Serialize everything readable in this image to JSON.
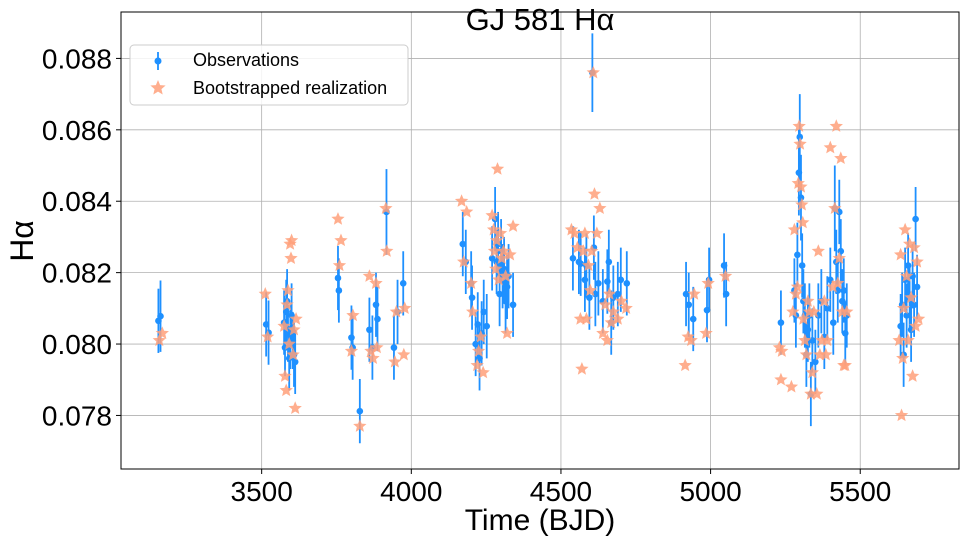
{
  "chart_data": {
    "type": "scatter",
    "title": "GJ 581 Hα",
    "xlabel": "Time (BJD)",
    "ylabel": "Hα",
    "xlim": [
      3030,
      5830
    ],
    "ylim": [
      0.0765,
      0.0893
    ],
    "xticks": [
      3500,
      4000,
      4500,
      5000,
      5500
    ],
    "yticks": [
      0.078,
      0.08,
      0.082,
      0.084,
      0.086,
      0.088
    ],
    "xtick_labels": [
      "3500",
      "4000",
      "4500",
      "5000",
      "5500"
    ],
    "ytick_labels": [
      "0.078",
      "0.080",
      "0.082",
      "0.084",
      "0.086",
      "0.088"
    ],
    "grid": true,
    "legend_position": "top-left",
    "colors": {
      "observations": "#1e90ff",
      "realization": "#ffa07a"
    },
    "series": [
      {
        "name": "Observations",
        "marker": "circle-with-errorbar",
        "points": [
          [
            3155,
            0.08065,
            0.0009
          ],
          [
            3162,
            0.08078,
            0.001
          ],
          [
            3515,
            0.08055,
            0.0009
          ],
          [
            3523,
            0.08032,
            0.0009
          ],
          [
            3575,
            0.0806,
            0.0009
          ],
          [
            3578,
            0.0799,
            0.0008
          ],
          [
            3582,
            0.0809,
            0.0009
          ],
          [
            3585,
            0.0812,
            0.0009
          ],
          [
            3588,
            0.0803,
            0.0008
          ],
          [
            3592,
            0.0796,
            0.0009
          ],
          [
            3596,
            0.0802,
            0.0009
          ],
          [
            3600,
            0.0808,
            0.0009
          ],
          [
            3604,
            0.0801,
            0.0008
          ],
          [
            3608,
            0.0797,
            0.0009
          ],
          [
            3612,
            0.0795,
            0.0009
          ],
          [
            3755,
            0.08185,
            0.0009
          ],
          [
            3758,
            0.0815,
            0.0009
          ],
          [
            3800,
            0.08018,
            0.0009
          ],
          [
            3804,
            0.0799,
            0.0009
          ],
          [
            3828,
            0.07812,
            0.0009
          ],
          [
            3860,
            0.0804,
            0.0009
          ],
          [
            3870,
            0.0799,
            0.0009
          ],
          [
            3882,
            0.0811,
            0.0009
          ],
          [
            3887,
            0.0807,
            0.0009
          ],
          [
            3917,
            0.0837,
            0.0012
          ],
          [
            3942,
            0.0799,
            0.0009
          ],
          [
            3954,
            0.0809,
            0.0009
          ],
          [
            3973,
            0.0817,
            0.0009
          ],
          [
            4172,
            0.0828,
            0.0009
          ],
          [
            4182,
            0.0823,
            0.0009
          ],
          [
            4200,
            0.0817,
            0.0009
          ],
          [
            4203,
            0.0813,
            0.0009
          ],
          [
            4215,
            0.08,
            0.0009
          ],
          [
            4222,
            0.08055,
            0.0009
          ],
          [
            4228,
            0.0796,
            0.0009
          ],
          [
            4235,
            0.0803,
            0.0009
          ],
          [
            4242,
            0.0809,
            0.0009
          ],
          [
            4252,
            0.0805,
            0.0009
          ],
          [
            4270,
            0.0824,
            0.0009
          ],
          [
            4280,
            0.0835,
            0.0009
          ],
          [
            4285,
            0.0823,
            0.0009
          ],
          [
            4290,
            0.0828,
            0.0009
          ],
          [
            4295,
            0.0814,
            0.0009
          ],
          [
            4300,
            0.0826,
            0.0009
          ],
          [
            4305,
            0.0819,
            0.0009
          ],
          [
            4310,
            0.0821,
            0.0009
          ],
          [
            4315,
            0.0812,
            0.0009
          ],
          [
            4320,
            0.0816,
            0.0009
          ],
          [
            4325,
            0.0819,
            0.0009
          ],
          [
            4340,
            0.0811,
            0.0009
          ],
          [
            4540,
            0.0824,
            0.0009
          ],
          [
            4560,
            0.0823,
            0.0009
          ],
          [
            4566,
            0.08225,
            0.0009
          ],
          [
            4580,
            0.0818,
            0.0009
          ],
          [
            4585,
            0.0822,
            0.0009
          ],
          [
            4595,
            0.0813,
            0.0009
          ],
          [
            4605,
            0.0876,
            0.0011
          ],
          [
            4610,
            0.0827,
            0.0009
          ],
          [
            4615,
            0.0814,
            0.0009
          ],
          [
            4625,
            0.0817,
            0.0009
          ],
          [
            4640,
            0.0812,
            0.0009
          ],
          [
            4655,
            0.08175,
            0.0009
          ],
          [
            4660,
            0.0823,
            0.0009
          ],
          [
            4668,
            0.0806,
            0.0009
          ],
          [
            4675,
            0.0813,
            0.0009
          ],
          [
            4690,
            0.0814,
            0.0009
          ],
          [
            4700,
            0.0818,
            0.0009
          ],
          [
            4720,
            0.0817,
            0.0009
          ],
          [
            4918,
            0.0814,
            0.0009
          ],
          [
            4927,
            0.0811,
            0.0009
          ],
          [
            4942,
            0.0807,
            0.0009
          ],
          [
            4988,
            0.08095,
            0.0009
          ],
          [
            4995,
            0.0818,
            0.0009
          ],
          [
            5045,
            0.0822,
            0.0009
          ],
          [
            5052,
            0.0814,
            0.0009
          ],
          [
            5235,
            0.0806,
            0.0009
          ],
          [
            5280,
            0.0815,
            0.0009
          ],
          [
            5285,
            0.0808,
            0.0009
          ],
          [
            5290,
            0.0825,
            0.0009
          ],
          [
            5295,
            0.0848,
            0.0012
          ],
          [
            5298,
            0.0858,
            0.0012
          ],
          [
            5302,
            0.0841,
            0.0012
          ],
          [
            5306,
            0.0822,
            0.0009
          ],
          [
            5310,
            0.0812,
            0.0009
          ],
          [
            5315,
            0.0808,
            0.0009
          ],
          [
            5320,
            0.0797,
            0.0009
          ],
          [
            5325,
            0.0804,
            0.0009
          ],
          [
            5330,
            0.0808,
            0.0009
          ],
          [
            5335,
            0.0786,
            0.0009
          ],
          [
            5340,
            0.0801,
            0.0009
          ],
          [
            5350,
            0.0795,
            0.0009
          ],
          [
            5360,
            0.0808,
            0.0009
          ],
          [
            5370,
            0.0812,
            0.0009
          ],
          [
            5380,
            0.0802,
            0.0009
          ],
          [
            5390,
            0.081,
            0.0009
          ],
          [
            5400,
            0.0818,
            0.0009
          ],
          [
            5410,
            0.0806,
            0.0009
          ],
          [
            5415,
            0.0838,
            0.0012
          ],
          [
            5420,
            0.0823,
            0.0009
          ],
          [
            5425,
            0.0815,
            0.0009
          ],
          [
            5430,
            0.0837,
            0.0009
          ],
          [
            5435,
            0.0826,
            0.0009
          ],
          [
            5440,
            0.0812,
            0.0009
          ],
          [
            5445,
            0.0815,
            0.0009
          ],
          [
            5450,
            0.0803,
            0.0009
          ],
          [
            5455,
            0.0808,
            0.0009
          ],
          [
            5635,
            0.0805,
            0.0009
          ],
          [
            5640,
            0.0811,
            0.0009
          ],
          [
            5645,
            0.0797,
            0.0009
          ],
          [
            5650,
            0.0818,
            0.0009
          ],
          [
            5655,
            0.0808,
            0.0009
          ],
          [
            5660,
            0.0822,
            0.0009
          ],
          [
            5665,
            0.0813,
            0.0009
          ],
          [
            5670,
            0.0804,
            0.0009
          ],
          [
            5675,
            0.0819,
            0.0009
          ],
          [
            5680,
            0.0811,
            0.0009
          ],
          [
            5685,
            0.0835,
            0.0009
          ],
          [
            5690,
            0.0816,
            0.0009
          ]
        ]
      },
      {
        "name": "Bootstrapped realization",
        "marker": "star",
        "points": [
          [
            3158,
            0.0801
          ],
          [
            3168,
            0.0803
          ],
          [
            3512,
            0.0814
          ],
          [
            3520,
            0.0802
          ],
          [
            3575,
            0.0805
          ],
          [
            3578,
            0.0791
          ],
          [
            3582,
            0.0787
          ],
          [
            3585,
            0.0811
          ],
          [
            3588,
            0.0815
          ],
          [
            3592,
            0.08
          ],
          [
            3595,
            0.0828
          ],
          [
            3598,
            0.0824
          ],
          [
            3600,
            0.0829
          ],
          [
            3605,
            0.0797
          ],
          [
            3608,
            0.0804
          ],
          [
            3612,
            0.0782
          ],
          [
            3615,
            0.0807
          ],
          [
            3755,
            0.0835
          ],
          [
            3760,
            0.0822
          ],
          [
            3765,
            0.0829
          ],
          [
            3800,
            0.0798
          ],
          [
            3805,
            0.0808
          ],
          [
            3828,
            0.0777
          ],
          [
            3860,
            0.0819
          ],
          [
            3865,
            0.0798
          ],
          [
            3872,
            0.0796
          ],
          [
            3882,
            0.0817
          ],
          [
            3885,
            0.0799
          ],
          [
            3915,
            0.0838
          ],
          [
            3918,
            0.0826
          ],
          [
            3945,
            0.0795
          ],
          [
            3950,
            0.0809
          ],
          [
            3975,
            0.0797
          ],
          [
            3978,
            0.081
          ],
          [
            4168,
            0.084
          ],
          [
            4175,
            0.0823
          ],
          [
            4185,
            0.0837
          ],
          [
            4200,
            0.0817
          ],
          [
            4205,
            0.0809
          ],
          [
            4220,
            0.0794
          ],
          [
            4225,
            0.0798
          ],
          [
            4232,
            0.0802
          ],
          [
            4240,
            0.0792
          ],
          [
            4270,
            0.0836
          ],
          [
            4275,
            0.0832
          ],
          [
            4278,
            0.0826
          ],
          [
            4282,
            0.0821
          ],
          [
            4285,
            0.0829
          ],
          [
            4288,
            0.0849
          ],
          [
            4292,
            0.0818
          ],
          [
            4298,
            0.0831
          ],
          [
            4302,
            0.0824
          ],
          [
            4308,
            0.0826
          ],
          [
            4315,
            0.0819
          ],
          [
            4320,
            0.0803
          ],
          [
            4330,
            0.0825
          ],
          [
            4340,
            0.0833
          ],
          [
            4535,
            0.0832
          ],
          [
            4545,
            0.0831
          ],
          [
            4555,
            0.0827
          ],
          [
            4565,
            0.0807
          ],
          [
            4570,
            0.0793
          ],
          [
            4575,
            0.0826
          ],
          [
            4580,
            0.0831
          ],
          [
            4585,
            0.0807
          ],
          [
            4592,
            0.0822
          ],
          [
            4598,
            0.0815
          ],
          [
            4603,
            0.0826
          ],
          [
            4608,
            0.0876
          ],
          [
            4612,
            0.0842
          ],
          [
            4620,
            0.0831
          ],
          [
            4630,
            0.0838
          ],
          [
            4640,
            0.0803
          ],
          [
            4648,
            0.0811
          ],
          [
            4655,
            0.0801
          ],
          [
            4662,
            0.0814
          ],
          [
            4668,
            0.0806
          ],
          [
            4675,
            0.0809
          ],
          [
            4690,
            0.0807
          ],
          [
            4702,
            0.0812
          ],
          [
            4718,
            0.081
          ],
          [
            4915,
            0.0794
          ],
          [
            4925,
            0.0802
          ],
          [
            4935,
            0.0801
          ],
          [
            4945,
            0.0814
          ],
          [
            4985,
            0.0803
          ],
          [
            4992,
            0.0817
          ],
          [
            5050,
            0.0819
          ],
          [
            5230,
            0.0799
          ],
          [
            5235,
            0.079
          ],
          [
            5238,
            0.0798
          ],
          [
            5270,
            0.0788
          ],
          [
            5275,
            0.0809
          ],
          [
            5280,
            0.0832
          ],
          [
            5285,
            0.0814
          ],
          [
            5290,
            0.0816
          ],
          [
            5293,
            0.0845
          ],
          [
            5296,
            0.0861
          ],
          [
            5299,
            0.0856
          ],
          [
            5302,
            0.0844
          ],
          [
            5305,
            0.0839
          ],
          [
            5308,
            0.0834
          ],
          [
            5310,
            0.0807
          ],
          [
            5315,
            0.0801
          ],
          [
            5320,
            0.0797
          ],
          [
            5325,
            0.0812
          ],
          [
            5330,
            0.0809
          ],
          [
            5335,
            0.0786
          ],
          [
            5340,
            0.0792
          ],
          [
            5345,
            0.0809
          ],
          [
            5355,
            0.0786
          ],
          [
            5360,
            0.0826
          ],
          [
            5365,
            0.0797
          ],
          [
            5372,
            0.0801
          ],
          [
            5380,
            0.0812
          ],
          [
            5385,
            0.0797
          ],
          [
            5390,
            0.0801
          ],
          [
            5400,
            0.0855
          ],
          [
            5408,
            0.0816
          ],
          [
            5415,
            0.0838
          ],
          [
            5420,
            0.0861
          ],
          [
            5425,
            0.0817
          ],
          [
            5430,
            0.0824
          ],
          [
            5435,
            0.0852
          ],
          [
            5440,
            0.0809
          ],
          [
            5445,
            0.0794
          ],
          [
            5450,
            0.0794
          ],
          [
            5455,
            0.0809
          ],
          [
            5630,
            0.0801
          ],
          [
            5635,
            0.0825
          ],
          [
            5638,
            0.078
          ],
          [
            5642,
            0.0796
          ],
          [
            5645,
            0.081
          ],
          [
            5650,
            0.0832
          ],
          [
            5655,
            0.0819
          ],
          [
            5660,
            0.0801
          ],
          [
            5665,
            0.0828
          ],
          [
            5670,
            0.0813
          ],
          [
            5675,
            0.0791
          ],
          [
            5680,
            0.0827
          ],
          [
            5685,
            0.0805
          ],
          [
            5690,
            0.0823
          ],
          [
            5695,
            0.0807
          ]
        ]
      }
    ]
  }
}
